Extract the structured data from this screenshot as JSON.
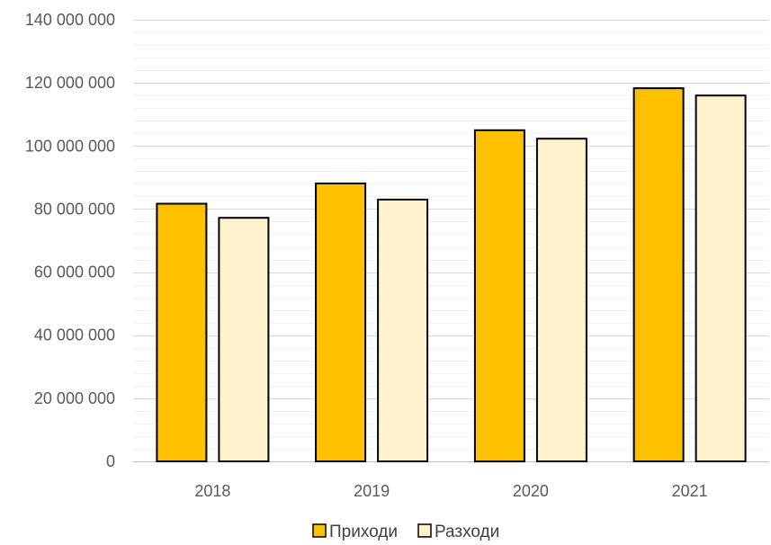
{
  "chart_data": {
    "type": "bar",
    "categories": [
      "2018",
      "2019",
      "2020",
      "2021"
    ],
    "series": [
      {
        "name": "Приходи",
        "values": [
          81700000,
          88100000,
          105000000,
          118300000
        ],
        "color": "#FFC000"
      },
      {
        "name": "Разходи",
        "values": [
          77200000,
          83000000,
          102300000,
          116000000
        ],
        "color": "#FFF2CC"
      }
    ],
    "ylim": [
      0,
      140000000
    ],
    "yticks": [
      "0",
      "20 000 000",
      "40 000 000",
      "60 000 000",
      "80 000 000",
      "100 000 000",
      "120 000 000",
      "140 000 000"
    ],
    "ytick_values": [
      0,
      20000000,
      40000000,
      60000000,
      80000000,
      100000000,
      120000000,
      140000000
    ],
    "minor_ytick_step": 4000000,
    "grid": true,
    "legend_position": "bottom",
    "bar_outline_color": "#000000",
    "gridline_color": "#D9D9D9",
    "minor_gridline_color": "#F2F2F2"
  }
}
